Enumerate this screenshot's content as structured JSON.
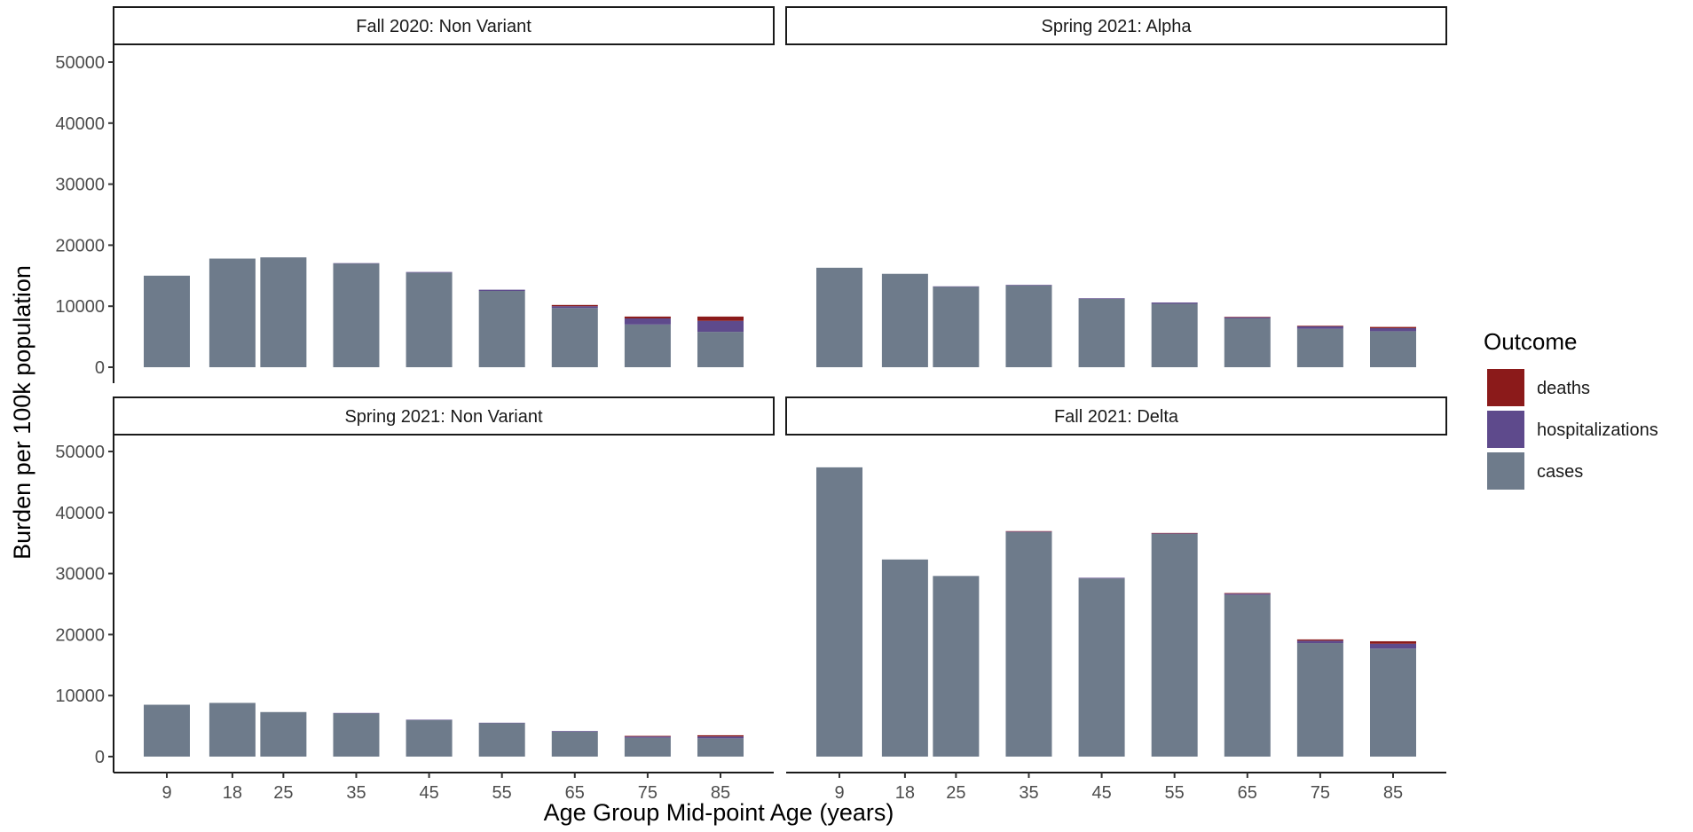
{
  "chart_data": {
    "type": "bar",
    "stacked": true,
    "xlabel": "Age Group Mid-point Age (years)",
    "ylabel": "Burden per 100k population",
    "ylim": [
      0,
      50000
    ],
    "y_ticks": [
      0,
      10000,
      20000,
      30000,
      40000,
      50000
    ],
    "x_ticks": [
      9,
      18,
      25,
      35,
      45,
      55,
      65,
      75,
      85
    ],
    "grid": false,
    "legend": {
      "title": "Outcome",
      "position": "right",
      "entries": [
        {
          "key": "deaths",
          "label": "deaths",
          "color": "#8b1a1a"
        },
        {
          "key": "hospitalizations",
          "label": "hospitalizations",
          "color": "#5e4a8c"
        },
        {
          "key": "cases",
          "label": "cases",
          "color": "#6e7b8b"
        }
      ]
    },
    "facets": [
      {
        "title": "Fall 2020: Non Variant",
        "x": [
          9,
          18,
          25,
          35,
          45,
          55,
          65,
          75,
          85
        ],
        "cases": [
          15000,
          17800,
          18000,
          17000,
          15500,
          12500,
          9700,
          7000,
          5800
        ],
        "hospitalizations": [
          0,
          0,
          0,
          50,
          100,
          200,
          300,
          1000,
          1800
        ],
        "deaths": [
          0,
          0,
          0,
          0,
          0,
          0,
          200,
          300,
          700
        ]
      },
      {
        "title": "Spring 2021: Alpha",
        "x": [
          9,
          18,
          25,
          35,
          45,
          55,
          65,
          75,
          85
        ],
        "cases": [
          16300,
          15300,
          13200,
          13400,
          11200,
          10400,
          8000,
          6300,
          5900
        ],
        "hospitalizations": [
          0,
          0,
          50,
          100,
          100,
          200,
          200,
          400,
          500
        ],
        "deaths": [
          0,
          0,
          0,
          0,
          0,
          0,
          50,
          100,
          200
        ]
      },
      {
        "title": "Spring 2021: Non Variant",
        "x": [
          9,
          18,
          25,
          35,
          45,
          55,
          65,
          75,
          85
        ],
        "cases": [
          8500,
          8800,
          7300,
          7100,
          6000,
          5500,
          4100,
          3100,
          3000
        ],
        "hospitalizations": [
          0,
          0,
          0,
          50,
          50,
          50,
          100,
          200,
          300
        ],
        "deaths": [
          0,
          0,
          0,
          0,
          0,
          0,
          0,
          100,
          200
        ]
      },
      {
        "title": "Fall 2021: Delta",
        "x": [
          9,
          18,
          25,
          35,
          45,
          55,
          65,
          75,
          85
        ],
        "cases": [
          47400,
          32300,
          29600,
          36800,
          29200,
          36500,
          26500,
          18600,
          17700
        ],
        "hospitalizations": [
          0,
          0,
          0,
          100,
          100,
          100,
          200,
          400,
          800
        ],
        "deaths": [
          0,
          0,
          0,
          50,
          0,
          50,
          100,
          200,
          400
        ]
      }
    ]
  }
}
